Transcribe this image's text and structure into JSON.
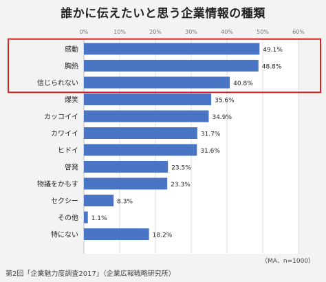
{
  "chart_data": {
    "type": "bar",
    "orientation": "horizontal",
    "title": "誰かに伝えたいと思う企業情報の種類",
    "categories": [
      "感動",
      "胸熱",
      "信じられない",
      "爆笑",
      "カッコイイ",
      "カワイイ",
      "ヒドイ",
      "啓発",
      "物議をかもす",
      "セクシー",
      "その他",
      "特にない"
    ],
    "values": [
      49.1,
      48.8,
      40.8,
      35.6,
      34.9,
      31.7,
      31.6,
      23.5,
      23.3,
      8.3,
      1.1,
      18.2
    ],
    "value_labels": [
      "49.1%",
      "48.8%",
      "40.8%",
      "35.6%",
      "34.9%",
      "31.7%",
      "31.6%",
      "23.5%",
      "23.3%",
      "8.3%",
      "1.1%",
      "18.2%"
    ],
    "xticks": [
      "0%",
      "10%",
      "20%",
      "30%",
      "40%",
      "50%",
      "60%"
    ],
    "xlim": [
      0,
      60
    ],
    "grid": true,
    "highlighted_categories": [
      "感動",
      "胸熱",
      "信じられない"
    ],
    "colors": {
      "bar": "#4a74c4",
      "highlight_box": "#e02020",
      "grid": "#dddddd"
    }
  },
  "note": "（MA、n=1000）",
  "footer": "第2回「企業魅力度調査2017」（企業広報戦略研究所）"
}
